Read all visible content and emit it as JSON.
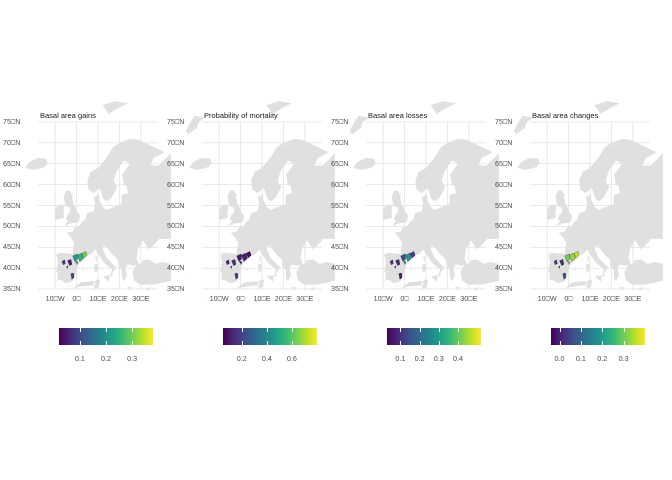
{
  "panels": [
    {
      "title": "Basal area gains",
      "y_ticks": [
        "75⎕N",
        "70⎕N",
        "65⎕N",
        "60⎕N",
        "55⎕N",
        "50⎕N",
        "45⎕N",
        "40⎕N",
        "35⎕N"
      ],
      "x_ticks": [
        "10⎕W",
        "0⎕",
        "10⎕E",
        "20⎕E",
        "30⎕E"
      ],
      "legend_ticks": [
        "0.1",
        "0.2",
        "0.3"
      ],
      "legend_range": [
        0.02,
        0.38
      ],
      "regions": [
        {
          "id": "ne-spain",
          "value": 0.22
        },
        {
          "id": "n-spain",
          "value": 0.25
        },
        {
          "id": "catalonia",
          "value": 0.3
        },
        {
          "id": "c-spain",
          "value": 0.05
        },
        {
          "id": "w-spain",
          "value": 0.08
        },
        {
          "id": "s-spain",
          "value": 0.1
        }
      ]
    },
    {
      "title": "Probability of mortality",
      "y_ticks": [
        "75⎕N",
        "70⎕N",
        "65⎕N",
        "60⎕N",
        "55⎕N",
        "50⎕N",
        "45⎕N",
        "40⎕N",
        "35⎕N"
      ],
      "x_ticks": [
        "10⎕W",
        "0⎕",
        "10⎕E",
        "20⎕E",
        "30⎕E"
      ],
      "legend_ticks": [
        "0.2",
        "0.4",
        "0.6"
      ],
      "legend_range": [
        0.05,
        0.8
      ],
      "regions": [
        {
          "id": "ne-spain",
          "value": 0.1
        },
        {
          "id": "n-spain",
          "value": 0.12
        },
        {
          "id": "catalonia",
          "value": 0.08
        },
        {
          "id": "c-spain",
          "value": 0.15
        },
        {
          "id": "w-spain",
          "value": 0.12
        },
        {
          "id": "s-spain",
          "value": 0.18
        }
      ]
    },
    {
      "title": "Basal area losses",
      "y_ticks": [
        "75⎕N",
        "70⎕N",
        "65⎕N",
        "60⎕N",
        "55⎕N",
        "50⎕N",
        "45⎕N",
        "40⎕N",
        "35⎕N"
      ],
      "x_ticks": [
        "10⎕W",
        "0⎕",
        "10⎕E",
        "20⎕E",
        "30⎕E"
      ],
      "legend_ticks": [
        "0.1",
        "0.2",
        "0.3",
        "0.4"
      ],
      "legend_range": [
        0.03,
        0.52
      ],
      "regions": [
        {
          "id": "ne-spain",
          "value": 0.15
        },
        {
          "id": "n-spain",
          "value": 0.28
        },
        {
          "id": "catalonia",
          "value": 0.12
        },
        {
          "id": "c-spain",
          "value": 0.08
        },
        {
          "id": "w-spain",
          "value": 0.1
        },
        {
          "id": "s-spain",
          "value": 0.07
        }
      ]
    },
    {
      "title": "Basal area changes",
      "y_ticks": [
        "75⎕N",
        "70⎕N",
        "65⎕N",
        "60⎕N",
        "55⎕N",
        "50⎕N",
        "45⎕N",
        "40⎕N",
        "35⎕N"
      ],
      "x_ticks": [
        "10⎕W",
        "0⎕",
        "10⎕E",
        "20⎕E",
        "30⎕E"
      ],
      "legend_ticks": [
        "0.0",
        "0.1",
        "0.2",
        "0.3"
      ],
      "legend_range": [
        -0.04,
        0.4
      ],
      "regions": [
        {
          "id": "ne-spain",
          "value": 0.3
        },
        {
          "id": "n-spain",
          "value": 0.33
        },
        {
          "id": "catalonia",
          "value": 0.36
        },
        {
          "id": "c-spain",
          "value": 0.02
        },
        {
          "id": "w-spain",
          "value": 0.04
        },
        {
          "id": "s-spain",
          "value": 0.06
        }
      ]
    }
  ],
  "colors": {
    "land": "#e0e0e0",
    "grid": "#d4d4d4",
    "viridis": [
      "#440154",
      "#482878",
      "#3e4a89",
      "#31688e",
      "#26828e",
      "#1f9e89",
      "#35b779",
      "#6ece58",
      "#b5de2b",
      "#fde725"
    ]
  }
}
